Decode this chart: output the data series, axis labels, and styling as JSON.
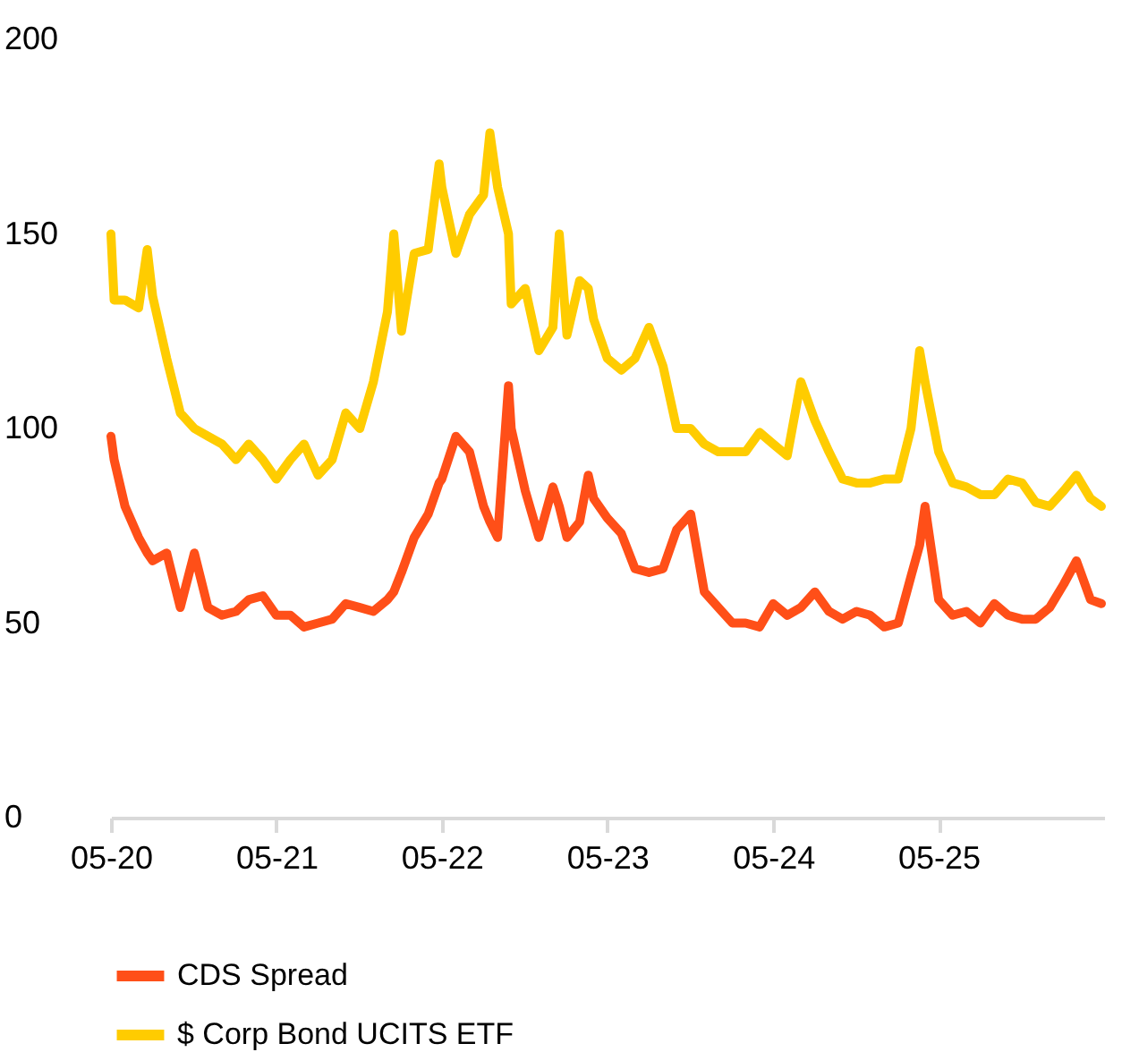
{
  "chart_data": {
    "type": "line",
    "legend": "bottom",
    "x": [
      "2020-05-01",
      "2020-05-08",
      "2020-06-01",
      "2020-07-01",
      "2020-07-20",
      "2020-08-01",
      "2020-09-01",
      "2020-10-01",
      "2020-11-01",
      "2020-12-01",
      "2021-01-01",
      "2021-02-01",
      "2021-03-01",
      "2021-04-01",
      "2021-05-01",
      "2021-06-01",
      "2021-07-01",
      "2021-08-01",
      "2021-09-01",
      "2021-10-01",
      "2021-11-01",
      "2021-12-01",
      "2022-01-01",
      "2022-01-15",
      "2022-02-01",
      "2022-03-01",
      "2022-04-01",
      "2022-04-25",
      "2022-05-01",
      "2022-06-01",
      "2022-07-01",
      "2022-08-01",
      "2022-08-15",
      "2022-09-01",
      "2022-09-25",
      "2022-10-01",
      "2022-11-01",
      "2022-12-01",
      "2023-01-01",
      "2023-01-15",
      "2023-02-01",
      "2023-03-01",
      "2023-03-20",
      "2023-04-01",
      "2023-05-01",
      "2023-06-01",
      "2023-07-01",
      "2023-08-01",
      "2023-09-01",
      "2023-10-01",
      "2023-11-01",
      "2023-12-01",
      "2024-01-01",
      "2024-02-01",
      "2024-03-01",
      "2024-04-01",
      "2024-05-01",
      "2024-06-01",
      "2024-07-01",
      "2024-08-01",
      "2024-09-01",
      "2024-10-01",
      "2024-11-01",
      "2024-12-01",
      "2025-01-01",
      "2025-02-01",
      "2025-03-01",
      "2025-03-20",
      "2025-04-01",
      "2025-05-01",
      "2025-06-01",
      "2025-07-01",
      "2025-08-01",
      "2025-09-01",
      "2025-10-01",
      "2025-11-01",
      "2025-12-01",
      "2026-01-01",
      "2026-02-01",
      "2026-03-01",
      "2026-04-01",
      "2026-04-25"
    ],
    "xlim": [
      "2020-05-01",
      "2026-05-01"
    ],
    "xticks": [
      {
        "value": "2020-05-01",
        "label": "05-20"
      },
      {
        "value": "2021-05-01",
        "label": "05-21"
      },
      {
        "value": "2022-05-01",
        "label": "05-22"
      },
      {
        "value": "2023-05-01",
        "label": "05-23"
      },
      {
        "value": "2024-05-01",
        "label": "05-24"
      },
      {
        "value": "2025-05-01",
        "label": "05-25"
      }
    ],
    "ylim": [
      0,
      200
    ],
    "yticks": [
      0,
      50,
      100,
      150,
      200
    ],
    "series": [
      {
        "name": "CDS Spread",
        "color": "#ff4f18",
        "values": [
          98,
          92,
          80,
          72,
          68,
          66,
          68,
          54,
          68,
          54,
          52,
          53,
          56,
          57,
          52,
          52,
          49,
          50,
          51,
          55,
          54,
          53,
          56,
          58,
          63,
          72,
          78,
          86,
          87,
          98,
          94,
          80,
          76,
          72,
          111,
          100,
          84,
          72,
          85,
          80,
          72,
          76,
          88,
          82,
          77,
          73,
          64,
          63,
          64,
          74,
          78,
          58,
          54,
          50,
          50,
          49,
          55,
          52,
          54,
          58,
          53,
          51,
          53,
          52,
          49,
          50,
          62,
          70,
          80,
          56,
          52,
          53,
          50,
          55,
          52,
          51,
          51,
          54,
          60,
          66,
          56,
          55
        ]
      },
      {
        "name": "$ Corp Bond UCITS ETF",
        "color": "#ffcc00",
        "values": [
          150,
          133,
          133,
          131,
          146,
          134,
          118,
          104,
          100,
          98,
          96,
          92,
          96,
          92,
          87,
          92,
          96,
          88,
          92,
          104,
          100,
          112,
          130,
          150,
          125,
          145,
          146,
          168,
          162,
          145,
          155,
          160,
          176,
          162,
          150,
          132,
          136,
          120,
          126,
          150,
          124,
          138,
          136,
          128,
          118,
          115,
          118,
          126,
          116,
          100,
          100,
          96,
          94,
          94,
          94,
          99,
          96,
          93,
          112,
          102,
          94,
          87,
          86,
          86,
          87,
          87,
          100,
          120,
          112,
          94,
          86,
          85,
          83,
          83,
          87,
          86,
          81,
          80,
          84,
          88,
          82,
          80
        ]
      }
    ]
  }
}
